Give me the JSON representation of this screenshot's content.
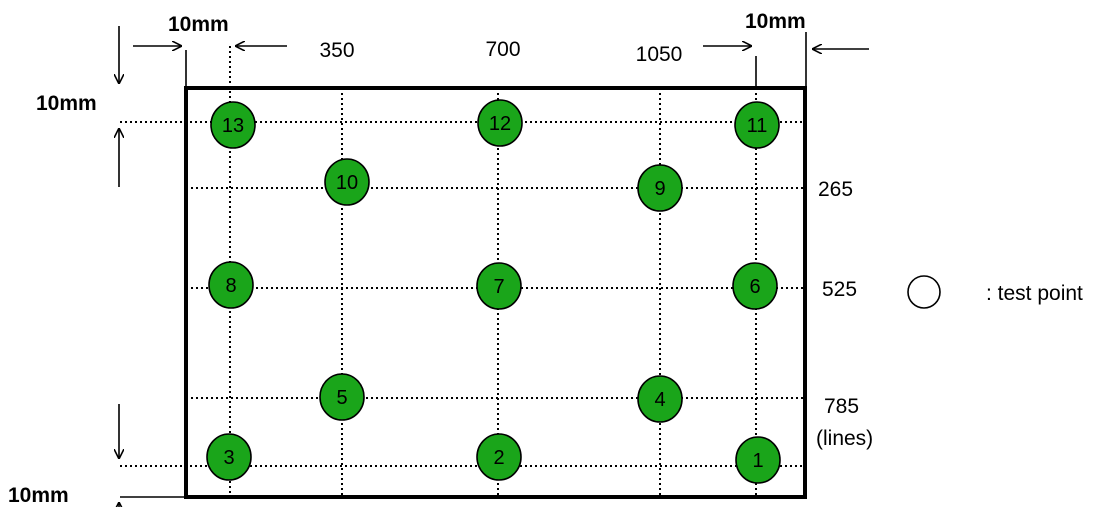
{
  "margin_labels": {
    "top_left": "10mm",
    "top_right": "10mm",
    "left_top": "10mm",
    "left_bottom": "10mm"
  },
  "column_labels": [
    "350",
    "700",
    "1050"
  ],
  "row_labels": [
    "265",
    "525",
    "785",
    "(lines)"
  ],
  "legend": {
    "text": ": test point"
  },
  "point_color": "#1aa51a",
  "test_points": [
    "1",
    "2",
    "3",
    "4",
    "5",
    "6",
    "7",
    "8",
    "9",
    "10",
    "11",
    "12",
    "13"
  ]
}
